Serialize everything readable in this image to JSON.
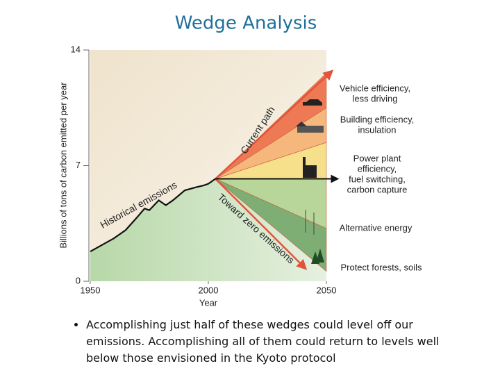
{
  "title": "Wedge Analysis",
  "chart_data": {
    "type": "wedge",
    "ylabel": "Billions of tons of carbon emitted per year",
    "xlabel": "Year",
    "xlim": [
      1950,
      2050
    ],
    "xticks": [
      1950,
      2000,
      2050
    ],
    "ylim": [
      0,
      14
    ],
    "yticks": [
      0,
      7,
      14
    ],
    "x": [
      1950,
      1955,
      1960,
      1965,
      1970,
      1973,
      1975,
      1979,
      1982,
      1985,
      1990,
      1995,
      1998,
      2000,
      2003
    ],
    "values": [
      1.8,
      2.2,
      2.6,
      3.1,
      3.9,
      4.4,
      4.3,
      4.9,
      4.6,
      4.9,
      5.5,
      5.7,
      5.8,
      5.9,
      6.2
    ],
    "annotations": [
      "Historical emissions",
      "Current path",
      "Toward zero emissions"
    ],
    "wedges": [
      {
        "lines": [
          "Vehicle efficiency,",
          "less driving"
        ],
        "top": 12.6,
        "bottom": 10.5,
        "color": "#ee7a55"
      },
      {
        "lines": [
          "Building efficiency,",
          "insulation"
        ],
        "top": 10.5,
        "bottom": 8.4,
        "color": "#f6b77c"
      },
      {
        "lines": [
          "Power plant",
          "efficiency,",
          "fuel switching,",
          "carbon capture"
        ],
        "top": 8.4,
        "bottom": 6.2,
        "color": "#f7e08c"
      },
      {
        "lines": [
          "Alternative energy"
        ],
        "top": 6.2,
        "bottom": 3.2,
        "color": "#b9d69a"
      },
      {
        "lines": [
          "Protect forests, soils"
        ],
        "top": 3.2,
        "bottom": 0.6,
        "color": "#7fae74"
      }
    ]
  },
  "bullet": "Accomplishing just half of these wedges could level off our emissions. Accomplishing all of them could return to levels well below those envisioned in the Kyoto protocol"
}
